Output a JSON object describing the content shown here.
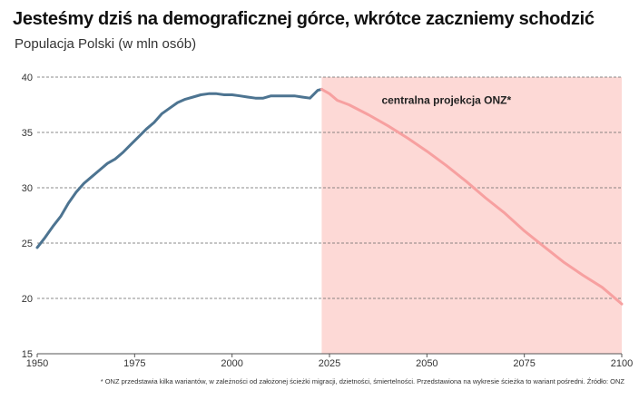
{
  "title": "Jesteśmy dziś na demograficznej górce, wkrótce zaczniemy schodzić",
  "subtitle": "Populacja Polski (w mln osób)",
  "footnote": "* ONZ przedstawia kilka wariantów, w zależności od założonej ścieżki migracji, dzietności, śmiertelności. Przedstawiona na wykresie ścieżka to wariant pośredni. Źródło: ONZ",
  "colors": {
    "historical": "#4d7491",
    "projection": "#f7a0a0",
    "projection_band": "#fdd9d6"
  },
  "chart_data": {
    "type": "line",
    "title": "Jesteśmy dziś na demograficznej górce, wkrótce zaczniemy schodzić",
    "subtitle": "Populacja Polski (w mln osób)",
    "xlim": [
      1950,
      2100
    ],
    "ylim": [
      15,
      40
    ],
    "x_ticks": [
      1950,
      1975,
      2000,
      2025,
      2050,
      2075,
      2100
    ],
    "y_ticks": [
      15,
      20,
      25,
      30,
      35,
      40
    ],
    "grid": "horizontal-dashed",
    "annotation": "centralna projekcja ONZ*",
    "series": [
      {
        "segment": "historical",
        "x": [
          1950,
          1952,
          1954,
          1956,
          1958,
          1960,
          1962,
          1964,
          1966,
          1968,
          1970,
          1972,
          1974,
          1976,
          1978,
          1980,
          1982,
          1984,
          1986,
          1988,
          1990,
          1992,
          1994,
          1996,
          1998,
          2000,
          2002,
          2004,
          2006,
          2008,
          2010,
          2012,
          2014,
          2016,
          2018,
          2020,
          2022,
          2023
        ],
        "values": [
          24.6,
          25.5,
          26.5,
          27.4,
          28.6,
          29.6,
          30.4,
          31.0,
          31.6,
          32.2,
          32.6,
          33.2,
          33.9,
          34.6,
          35.3,
          35.9,
          36.7,
          37.2,
          37.7,
          38.0,
          38.2,
          38.4,
          38.5,
          38.5,
          38.4,
          38.4,
          38.3,
          38.2,
          38.1,
          38.1,
          38.3,
          38.3,
          38.3,
          38.3,
          38.2,
          38.1,
          38.8,
          38.9
        ]
      },
      {
        "segment": "projection",
        "x": [
          2023,
          2025,
          2027,
          2030,
          2035,
          2040,
          2045,
          2050,
          2055,
          2060,
          2065,
          2070,
          2075,
          2080,
          2085,
          2090,
          2095,
          2100
        ],
        "values": [
          38.9,
          38.5,
          37.9,
          37.5,
          36.6,
          35.6,
          34.5,
          33.3,
          32.0,
          30.6,
          29.1,
          27.7,
          26.1,
          24.7,
          23.3,
          22.1,
          21.0,
          19.5
        ]
      }
    ],
    "projection_start": 2023
  }
}
